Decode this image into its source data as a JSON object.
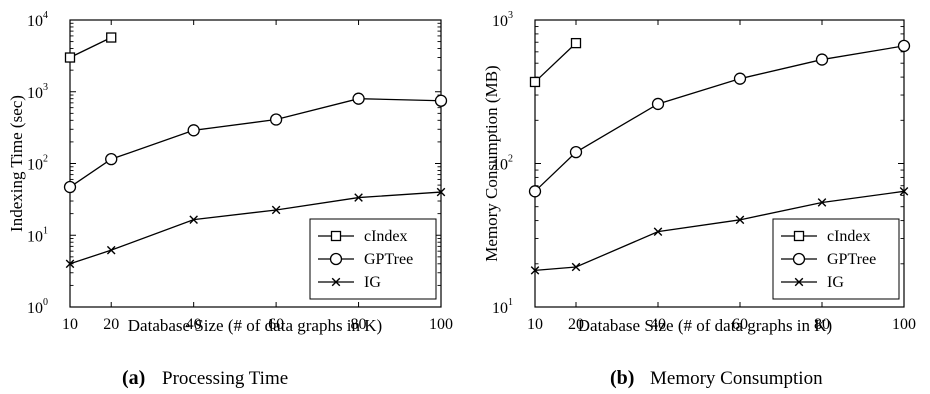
{
  "chart_data": [
    {
      "type": "line",
      "caption": {
        "letter": "(a)",
        "text": "Processing Time"
      },
      "xlabel": "Database Size (# of data graphs in K)",
      "ylabel": "Indexing Time (sec)",
      "x_ticks": [
        "10",
        "20",
        "40",
        "60",
        "80",
        "100"
      ],
      "y_ticks": [
        {
          "base": "10",
          "exp": "0"
        },
        {
          "base": "10",
          "exp": "1"
        },
        {
          "base": "10",
          "exp": "2"
        },
        {
          "base": "10",
          "exp": "3"
        },
        {
          "base": "10",
          "exp": "4"
        }
      ],
      "xlim": [
        10,
        100
      ],
      "ylim": [
        1,
        10000
      ],
      "yscale": "log",
      "grid": false,
      "legend_position": "bottom-right",
      "series": [
        {
          "name": "cIndex",
          "marker": "square",
          "x": [
            10,
            20
          ],
          "y": [
            3000,
            5700
          ]
        },
        {
          "name": "GPTree",
          "marker": "circle",
          "x": [
            10,
            20,
            40,
            60,
            80,
            100
          ],
          "y": [
            47,
            115,
            290,
            410,
            800,
            750
          ]
        },
        {
          "name": "IG",
          "marker": "x",
          "x": [
            10,
            20,
            40,
            60,
            80,
            100
          ],
          "y": [
            4,
            6.2,
            16.5,
            22.5,
            33.5,
            40
          ]
        }
      ]
    },
    {
      "type": "line",
      "caption": {
        "letter": "(b)",
        "text": "Memory Consumption"
      },
      "xlabel": "Database Size (# of data graphs in K)",
      "ylabel": "Memory Consumption (MB)",
      "x_ticks": [
        "10",
        "20",
        "40",
        "60",
        "80",
        "100"
      ],
      "y_ticks": [
        {
          "base": "10",
          "exp": "1"
        },
        {
          "base": "10",
          "exp": "2"
        },
        {
          "base": "10",
          "exp": "3"
        }
      ],
      "xlim": [
        10,
        100
      ],
      "ylim": [
        10,
        1000
      ],
      "yscale": "log",
      "grid": false,
      "legend_position": "bottom-right",
      "series": [
        {
          "name": "cIndex",
          "marker": "square",
          "x": [
            10,
            20
          ],
          "y": [
            370,
            690
          ]
        },
        {
          "name": "GPTree",
          "marker": "circle",
          "x": [
            10,
            20,
            40,
            60,
            80,
            100
          ],
          "y": [
            64,
            120,
            260,
            390,
            530,
            660
          ]
        },
        {
          "name": "IG",
          "marker": "x",
          "x": [
            10,
            20,
            40,
            60,
            80,
            100
          ],
          "y": [
            18,
            19,
            33.5,
            40.5,
            53.5,
            64
          ]
        }
      ]
    }
  ]
}
